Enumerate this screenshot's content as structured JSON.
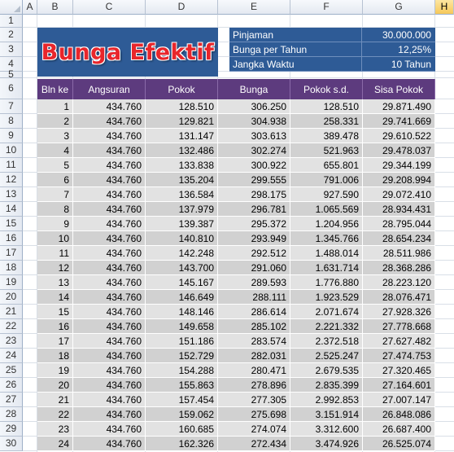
{
  "sheet": {
    "columns": [
      "A",
      "B",
      "C",
      "D",
      "E",
      "F",
      "G",
      "H"
    ],
    "selected_column": "H",
    "rows": [
      "1",
      "2",
      "3",
      "4",
      "5",
      "6",
      "7",
      "8",
      "9",
      "10",
      "11",
      "12",
      "13",
      "14",
      "15",
      "16",
      "17",
      "18",
      "19",
      "20",
      "21",
      "22",
      "23",
      "24",
      "25",
      "26",
      "27",
      "28",
      "29",
      "30"
    ]
  },
  "title": "Bunga Efektif",
  "info": [
    {
      "label": "Pinjaman",
      "value": "30.000.000"
    },
    {
      "label": "Bunga per Tahun",
      "value": "12,25%"
    },
    {
      "label": "Jangka Waktu",
      "value": "10 Tahun"
    }
  ],
  "table": {
    "headers": [
      "Bln ke",
      "Angsuran",
      "Pokok",
      "Bunga",
      "Pokok s.d.",
      "Sisa Pokok"
    ],
    "rows": [
      [
        "1",
        "434.760",
        "128.510",
        "306.250",
        "128.510",
        "29.871.490"
      ],
      [
        "2",
        "434.760",
        "129.821",
        "304.938",
        "258.331",
        "29.741.669"
      ],
      [
        "3",
        "434.760",
        "131.147",
        "303.613",
        "389.478",
        "29.610.522"
      ],
      [
        "4",
        "434.760",
        "132.486",
        "302.274",
        "521.963",
        "29.478.037"
      ],
      [
        "5",
        "434.760",
        "133.838",
        "300.922",
        "655.801",
        "29.344.199"
      ],
      [
        "6",
        "434.760",
        "135.204",
        "299.555",
        "791.006",
        "29.208.994"
      ],
      [
        "7",
        "434.760",
        "136.584",
        "298.175",
        "927.590",
        "29.072.410"
      ],
      [
        "8",
        "434.760",
        "137.979",
        "296.781",
        "1.065.569",
        "28.934.431"
      ],
      [
        "9",
        "434.760",
        "139.387",
        "295.372",
        "1.204.956",
        "28.795.044"
      ],
      [
        "10",
        "434.760",
        "140.810",
        "293.949",
        "1.345.766",
        "28.654.234"
      ],
      [
        "11",
        "434.760",
        "142.248",
        "292.512",
        "1.488.014",
        "28.511.986"
      ],
      [
        "12",
        "434.760",
        "143.700",
        "291.060",
        "1.631.714",
        "28.368.286"
      ],
      [
        "13",
        "434.760",
        "145.167",
        "289.593",
        "1.776.880",
        "28.223.120"
      ],
      [
        "14",
        "434.760",
        "146.649",
        "288.111",
        "1.923.529",
        "28.076.471"
      ],
      [
        "15",
        "434.760",
        "148.146",
        "286.614",
        "2.071.674",
        "27.928.326"
      ],
      [
        "16",
        "434.760",
        "149.658",
        "285.102",
        "2.221.332",
        "27.778.668"
      ],
      [
        "17",
        "434.760",
        "151.186",
        "283.574",
        "2.372.518",
        "27.627.482"
      ],
      [
        "18",
        "434.760",
        "152.729",
        "282.031",
        "2.525.247",
        "27.474.753"
      ],
      [
        "19",
        "434.760",
        "154.288",
        "280.471",
        "2.679.535",
        "27.320.465"
      ],
      [
        "20",
        "434.760",
        "155.863",
        "278.896",
        "2.835.399",
        "27.164.601"
      ],
      [
        "21",
        "434.760",
        "157.454",
        "277.305",
        "2.992.853",
        "27.007.147"
      ],
      [
        "22",
        "434.760",
        "159.062",
        "275.698",
        "3.151.914",
        "26.848.086"
      ],
      [
        "23",
        "434.760",
        "160.685",
        "274.074",
        "3.312.600",
        "26.687.400"
      ],
      [
        "24",
        "434.760",
        "162.326",
        "272.434",
        "3.474.926",
        "26.525.074"
      ]
    ]
  },
  "colors": {
    "info_bg": "#2e5b96",
    "header_bg": "#5d3b7e",
    "row_bg_light": "#e2e2e2",
    "row_bg_dark": "#d1d1d1",
    "title_text": "#e8262b"
  }
}
